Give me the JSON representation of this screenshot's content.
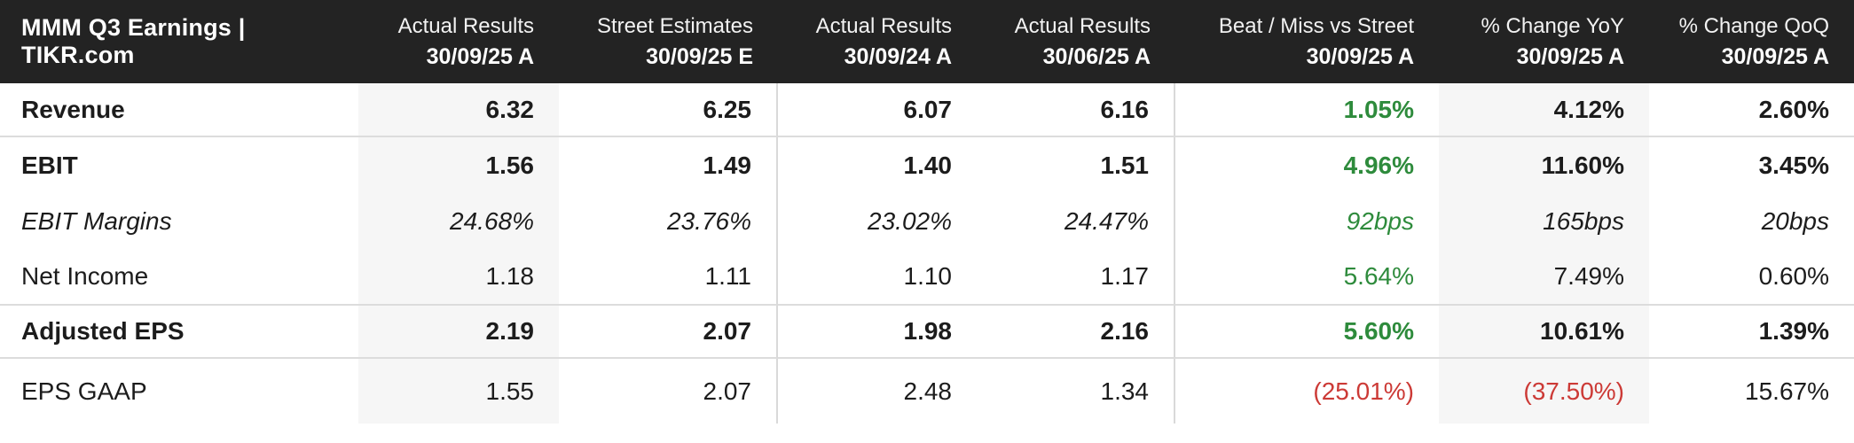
{
  "table": {
    "title": "MMM Q3 Earnings | TIKR.com",
    "columns": [
      {
        "line1": "Actual Results",
        "line2": "30/09/25 A"
      },
      {
        "line1": "Street Estimates",
        "line2": "30/09/25 E"
      },
      {
        "line1": "Actual Results",
        "line2": "30/09/24 A"
      },
      {
        "line1": "Actual Results",
        "line2": "30/06/25 A"
      },
      {
        "line1": "Beat / Miss vs Street",
        "line2": "30/09/25 A"
      },
      {
        "line1": "% Change YoY",
        "line2": "30/09/25 A"
      },
      {
        "line1": "% Change QoQ",
        "line2": "30/09/25 A"
      }
    ],
    "rows": [
      {
        "label": "Revenue",
        "style": "bold",
        "cells": [
          {
            "text": "6.32",
            "tone": "default"
          },
          {
            "text": "6.25",
            "tone": "default"
          },
          {
            "text": "6.07",
            "tone": "default"
          },
          {
            "text": "6.16",
            "tone": "default"
          },
          {
            "text": "1.05%",
            "tone": "green"
          },
          {
            "text": "4.12%",
            "tone": "default"
          },
          {
            "text": "2.60%",
            "tone": "default"
          }
        ]
      },
      {
        "label": "EBIT",
        "style": "bold",
        "cells": [
          {
            "text": "1.56",
            "tone": "default"
          },
          {
            "text": "1.49",
            "tone": "default"
          },
          {
            "text": "1.40",
            "tone": "default"
          },
          {
            "text": "1.51",
            "tone": "default"
          },
          {
            "text": "4.96%",
            "tone": "green"
          },
          {
            "text": "11.60%",
            "tone": "default"
          },
          {
            "text": "3.45%",
            "tone": "default"
          }
        ]
      },
      {
        "label": "EBIT Margins",
        "style": "italic",
        "cells": [
          {
            "text": "24.68%",
            "tone": "default"
          },
          {
            "text": "23.76%",
            "tone": "default"
          },
          {
            "text": "23.02%",
            "tone": "default"
          },
          {
            "text": "24.47%",
            "tone": "default"
          },
          {
            "text": "92bps",
            "tone": "green"
          },
          {
            "text": "165bps",
            "tone": "default"
          },
          {
            "text": "20bps",
            "tone": "default"
          }
        ]
      },
      {
        "label": "Net Income",
        "style": "regular",
        "cells": [
          {
            "text": "1.18",
            "tone": "default"
          },
          {
            "text": "1.11",
            "tone": "default"
          },
          {
            "text": "1.10",
            "tone": "default"
          },
          {
            "text": "1.17",
            "tone": "default"
          },
          {
            "text": "5.64%",
            "tone": "green"
          },
          {
            "text": "7.49%",
            "tone": "default"
          },
          {
            "text": "0.60%",
            "tone": "default"
          }
        ]
      },
      {
        "label": "Adjusted EPS",
        "style": "bold",
        "cells": [
          {
            "text": "2.19",
            "tone": "default"
          },
          {
            "text": "2.07",
            "tone": "default"
          },
          {
            "text": "1.98",
            "tone": "default"
          },
          {
            "text": "2.16",
            "tone": "default"
          },
          {
            "text": "5.60%",
            "tone": "green"
          },
          {
            "text": "10.61%",
            "tone": "default"
          },
          {
            "text": "1.39%",
            "tone": "default"
          }
        ]
      },
      {
        "label": "EPS GAAP",
        "style": "regular",
        "cells": [
          {
            "text": "1.55",
            "tone": "default"
          },
          {
            "text": "2.07",
            "tone": "default"
          },
          {
            "text": "2.48",
            "tone": "default"
          },
          {
            "text": "1.34",
            "tone": "default"
          },
          {
            "text": "(25.01%)",
            "tone": "red"
          },
          {
            "text": "(37.50%)",
            "tone": "red"
          },
          {
            "text": "15.67%",
            "tone": "default"
          }
        ]
      }
    ]
  },
  "colors": {
    "header_bg": "#232323",
    "header_text": "#ffffff",
    "body_text": "#1c1c1c",
    "positive": "#2e8b3c",
    "negative": "#cc3a36",
    "shade": "#f6f6f6",
    "border": "#d9d9d9",
    "border_h": "#dcdcdc"
  }
}
